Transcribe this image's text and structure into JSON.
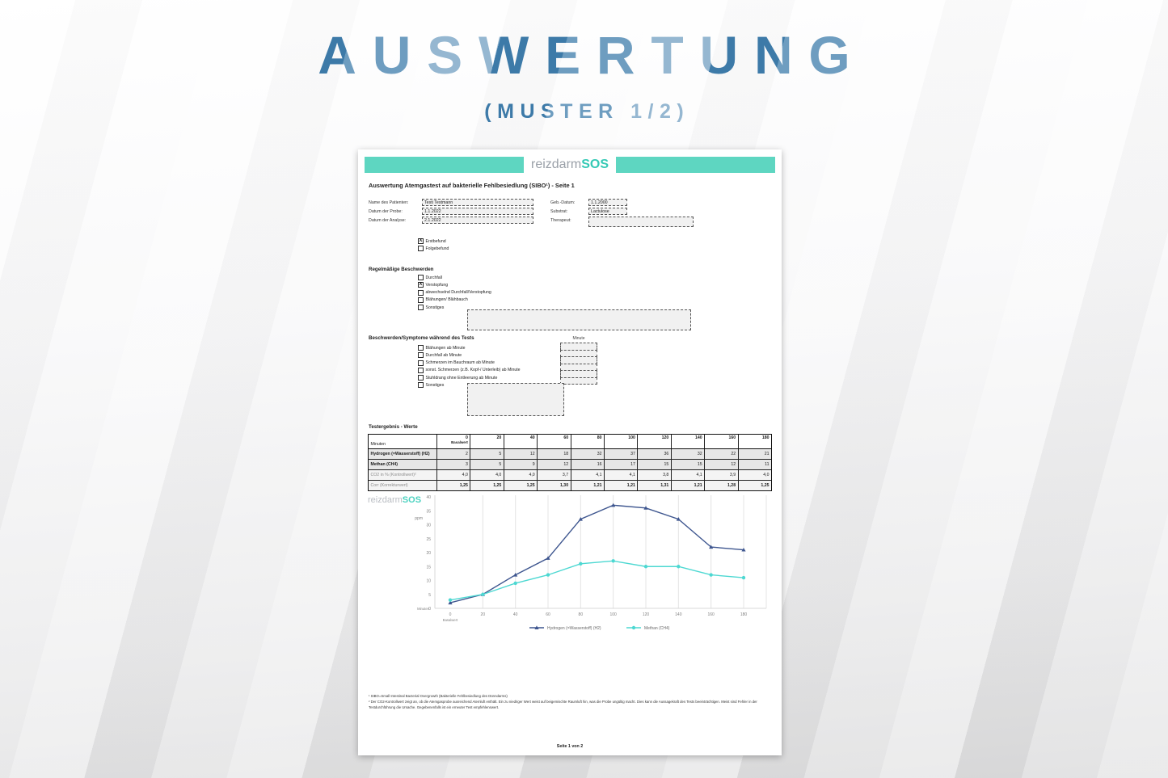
{
  "page": {
    "title": "AUSWERTUNG",
    "subtitle": "(MUSTER 1/2)"
  },
  "colors": {
    "accent_blue": "#3e7cab",
    "brand_teal": "#5ed6c1",
    "logo_teal": "#35c9b5",
    "hydrogen_line": "#3e568f",
    "methan_line": "#4dd8d2"
  },
  "doc": {
    "logo_gray": "reizdarm",
    "logo_teal": "SOS",
    "title": "Auswertung Atemgastest auf bakterielle Fehlbesiedlung (SIBO¹) - Seite 1",
    "fields_left": [
      {
        "label": "Name des Patienten:",
        "value": "Testi Testmann"
      },
      {
        "label": "Datum der Probe:",
        "value": "1.1.2022"
      },
      {
        "label": "Datum der Analyse:",
        "value": "2.1.2022"
      }
    ],
    "fields_right": [
      {
        "label": "Geb.-Datum:",
        "value": "1.1.2000"
      },
      {
        "label": "Substrat:",
        "value": "Lactulose"
      },
      {
        "label": "Therapeut:",
        "value": ""
      }
    ],
    "befund": [
      {
        "label": "Erstbefund",
        "checked": "X"
      },
      {
        "label": "Folgebefund",
        "checked": ""
      }
    ],
    "beschwerden": {
      "heading": "Regelmäßige Beschwerden",
      "items": [
        {
          "label": "Durchfall",
          "checked": ""
        },
        {
          "label": "Verstopfung",
          "checked": "X"
        },
        {
          "label": "abwechselnd Durchfall/Verstopfung",
          "checked": ""
        },
        {
          "label": "Blähungen/ Blähbauch",
          "checked": ""
        },
        {
          "label": "Sonstiges",
          "checked": ""
        }
      ],
      "sonstiges_value": ""
    },
    "symptome": {
      "heading": "Beschwerden/Symptome während des Tests",
      "minute_col": "Minute",
      "items": [
        {
          "label": "Blähungen ab Minute",
          "checked": "",
          "minute": ""
        },
        {
          "label": "Durchfall ab Minute",
          "checked": "",
          "minute": ""
        },
        {
          "label": "Schmerzen im Bauchraum ab Minute",
          "checked": "",
          "minute": ""
        },
        {
          "label": "sonst. Schmerzen (z.B. Kopf-/ Unterleib) ab Minute",
          "checked": "",
          "minute": ""
        },
        {
          "label": "Stuhldrang ohne Entleerung ab Minute",
          "checked": "",
          "minute": ""
        },
        {
          "label": "Sonstiges",
          "checked": "",
          "minute": ""
        }
      ],
      "sonstiges_value": ""
    },
    "results_heading": "Testergebnis - Werte",
    "footnotes": [
      "¹ SIBO=Small Intestinal Bacterial Overgrowth (Bakterielle Fehlbesiedlung des Dünndarms)",
      "² Der CO2-Kontrollwert zeigt an, ob die Atemgasprobe ausreichend Atemluft enthält. Ein zu niedriger Wert weist auf beigemischte Raumluft hin, was die Probe ungültig macht. Dies kann die Aussagekraft des Tests beeinträchtigen. Meist sind Fehler in der Testdurchführung die Ursache. Gegebenenfalls ist ein erneuter Test empfehlenswert."
    ],
    "page_footer": "Seite 1 von 2"
  },
  "table": {
    "corner": "Minuten",
    "col_main": [
      "0",
      "20",
      "40",
      "60",
      "80",
      "100",
      "120",
      "140",
      "160",
      "180"
    ],
    "col_sub": [
      "Basalwert",
      "",
      "",
      "",
      "",
      "",
      "",
      "",
      "",
      ""
    ],
    "rows": [
      {
        "label": "Hydrogen (=Wasserstoff) (H2)",
        "style": "gas",
        "values": [
          "2",
          "5",
          "12",
          "18",
          "32",
          "37",
          "36",
          "32",
          "22",
          "21"
        ]
      },
      {
        "label": "Methan (CH4)",
        "style": "gas",
        "values": [
          "3",
          "5",
          "9",
          "12",
          "16",
          "17",
          "15",
          "15",
          "12",
          "11"
        ]
      },
      {
        "label": "CO2 in % (Kontrollwert)²",
        "style": "control",
        "values": [
          "4,0",
          "4,0",
          "4,0",
          "3,7",
          "4,1",
          "4,1",
          "3,8",
          "4,1",
          "3,9",
          "4,0"
        ]
      },
      {
        "label": "Corr (Korrekturwert)",
        "style": "corr",
        "values": [
          "1,25",
          "1,25",
          "1,25",
          "1,30",
          "1,21",
          "1,21",
          "1,31",
          "1,21",
          "1,28",
          "1,25"
        ]
      }
    ]
  },
  "chart_data": {
    "type": "line",
    "x": [
      0,
      20,
      40,
      60,
      80,
      100,
      120,
      140,
      160,
      180
    ],
    "x_tick_labels": [
      "0",
      "20",
      "40",
      "60",
      "80",
      "100",
      "120",
      "140",
      "160",
      "180"
    ],
    "x_first_sublabel": "Basalwert",
    "series": [
      {
        "name": "Hydrogen (=Wasserstoff) (H2)",
        "color": "#3e568f",
        "marker": "triangle",
        "values": [
          2,
          5,
          12,
          18,
          32,
          37,
          36,
          32,
          22,
          21
        ]
      },
      {
        "name": "Methan (CH4)",
        "color": "#4dd8d2",
        "marker": "circle",
        "values": [
          3,
          5,
          9,
          12,
          16,
          17,
          15,
          15,
          12,
          11
        ]
      }
    ],
    "ylabel": "ppm",
    "xlabel": "Minuten",
    "ylim": [
      0,
      40
    ],
    "ytick_step": 5,
    "grid": "vertical",
    "legend_position": "bottom"
  }
}
